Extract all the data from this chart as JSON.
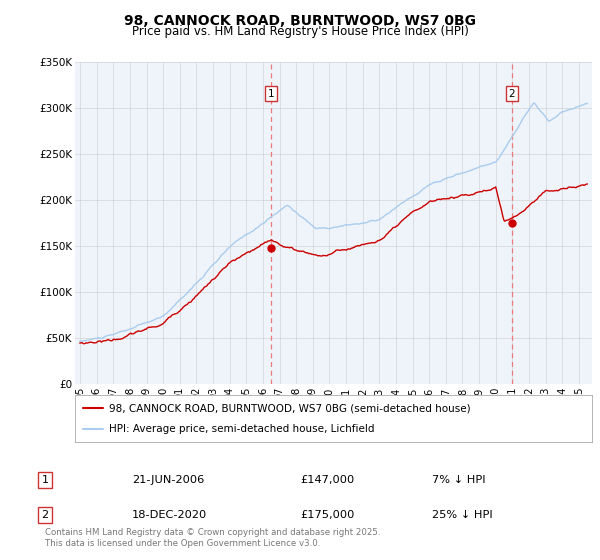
{
  "title": "98, CANNOCK ROAD, BURNTWOOD, WS7 0BG",
  "subtitle": "Price paid vs. HM Land Registry's House Price Index (HPI)",
  "legend_line1": "98, CANNOCK ROAD, BURNTWOOD, WS7 0BG (semi-detached house)",
  "legend_line2": "HPI: Average price, semi-detached house, Lichfield",
  "annotation1_num": "1",
  "annotation1_date": "21-JUN-2006",
  "annotation1_price": "£147,000",
  "annotation1_hpi": "7% ↓ HPI",
  "annotation2_num": "2",
  "annotation2_date": "18-DEC-2020",
  "annotation2_price": "£175,000",
  "annotation2_hpi": "25% ↓ HPI",
  "footer": "Contains HM Land Registry data © Crown copyright and database right 2025.\nThis data is licensed under the Open Government Licence v3.0.",
  "vline1_year": 2006.47,
  "vline2_year": 2020.96,
  "marker1_year": 2006.47,
  "marker1_val": 147000,
  "marker2_year": 2020.96,
  "marker2_val": 175000,
  "label1_val": 320000,
  "label2_val": 320000,
  "ylim": [
    0,
    350000
  ],
  "xlim_left": 1994.7,
  "xlim_right": 2025.8,
  "yticks": [
    0,
    50000,
    100000,
    150000,
    200000,
    250000,
    300000,
    350000
  ],
  "ytick_labels": [
    "£0",
    "£50K",
    "£100K",
    "£150K",
    "£200K",
    "£250K",
    "£300K",
    "£350K"
  ],
  "red_color": "#cc0000",
  "blue_color": "#aaccee",
  "dot_color": "#cc0000",
  "vline_color": "#ee6666",
  "bg_color": "#ffffff",
  "chart_bg": "#eef4fa",
  "grid_color": "#cccccc"
}
